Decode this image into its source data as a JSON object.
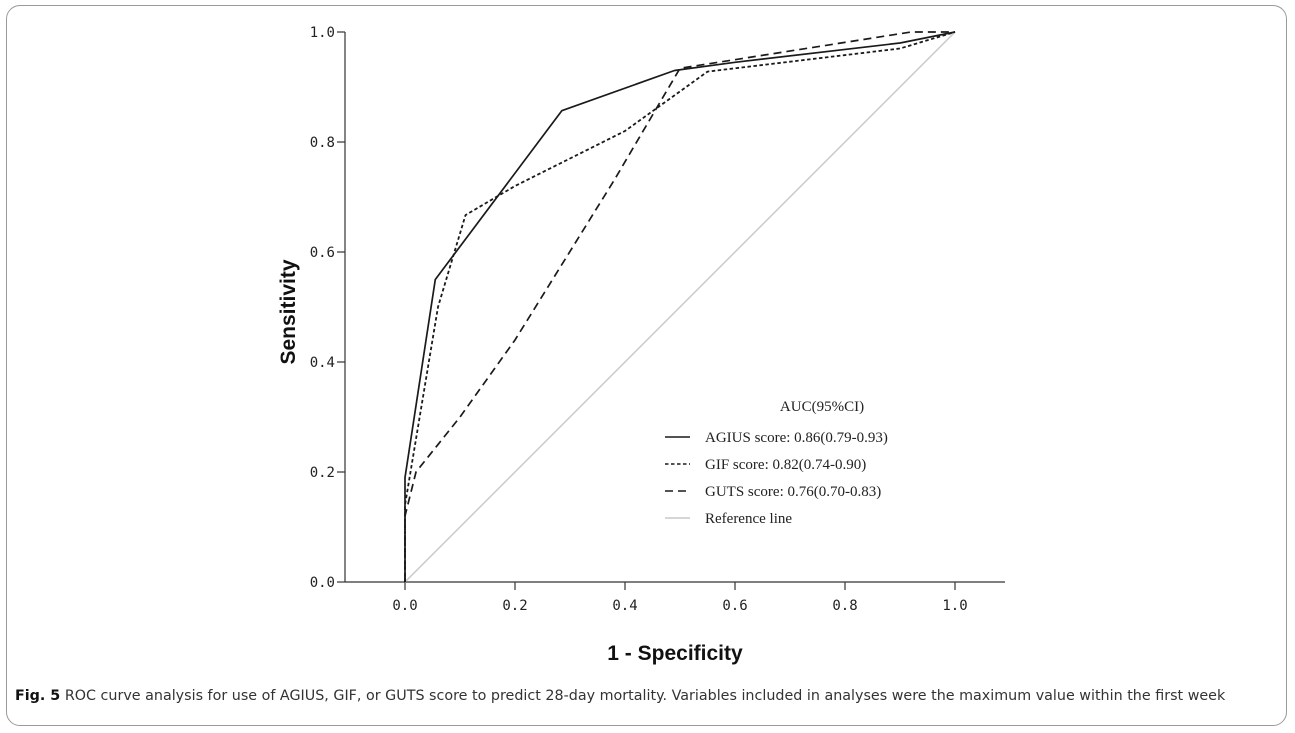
{
  "figure": {
    "label": "Fig. 5",
    "caption": "ROC curve analysis for use of AGIUS, GIF, or GUTS score to predict 28-day mortality. Variables included in analyses were the maximum value within the first week"
  },
  "chart_data": {
    "type": "line",
    "title": "",
    "xlabel": "1 - Specificity",
    "ylabel": "Sensitivity",
    "xlim": [
      -0.1,
      1.12
    ],
    "ylim": [
      0,
      1.0
    ],
    "xticks": [
      "0.0",
      "0.2",
      "0.4",
      "0.6",
      "0.8",
      "1.0"
    ],
    "yticks": [
      "0.0",
      "0.2",
      "0.4",
      "0.6",
      "0.8",
      "1.0"
    ],
    "grid": false,
    "legend_title": "AUC(95%CI)",
    "legend_position": "bottom-right",
    "series": [
      {
        "name": "AGIUS score: 0.86(0.79-0.93)",
        "style": "solid",
        "color": "#1a1a1a",
        "points": [
          [
            0,
            0
          ],
          [
            0,
            0.19
          ],
          [
            0.055,
            0.55
          ],
          [
            0.285,
            0.857
          ],
          [
            0.49,
            0.93
          ],
          [
            0.6,
            0.945
          ],
          [
            0.9,
            0.98
          ],
          [
            1.0,
            1.0
          ]
        ]
      },
      {
        "name": "GIF score: 0.82(0.74-0.90)",
        "style": "dotted",
        "color": "#1a1a1a",
        "points": [
          [
            0,
            0
          ],
          [
            0,
            0.14
          ],
          [
            0.06,
            0.5
          ],
          [
            0.11,
            0.667
          ],
          [
            0.2,
            0.72
          ],
          [
            0.4,
            0.82
          ],
          [
            0.55,
            0.928
          ],
          [
            0.9,
            0.97
          ],
          [
            1.0,
            1.0
          ]
        ]
      },
      {
        "name": "GUTS score: 0.76(0.70-0.83)",
        "style": "dashed",
        "color": "#1a1a1a",
        "points": [
          [
            0,
            0
          ],
          [
            0,
            0.12
          ],
          [
            0.02,
            0.2
          ],
          [
            0.1,
            0.3
          ],
          [
            0.2,
            0.44
          ],
          [
            0.38,
            0.73
          ],
          [
            0.5,
            0.934
          ],
          [
            0.92,
            1.0
          ],
          [
            1.0,
            1.0
          ]
        ]
      },
      {
        "name": "Reference line",
        "style": "solid",
        "color": "#c8c8c8",
        "points": [
          [
            0,
            0
          ],
          [
            1.0,
            1.0
          ]
        ]
      }
    ]
  }
}
